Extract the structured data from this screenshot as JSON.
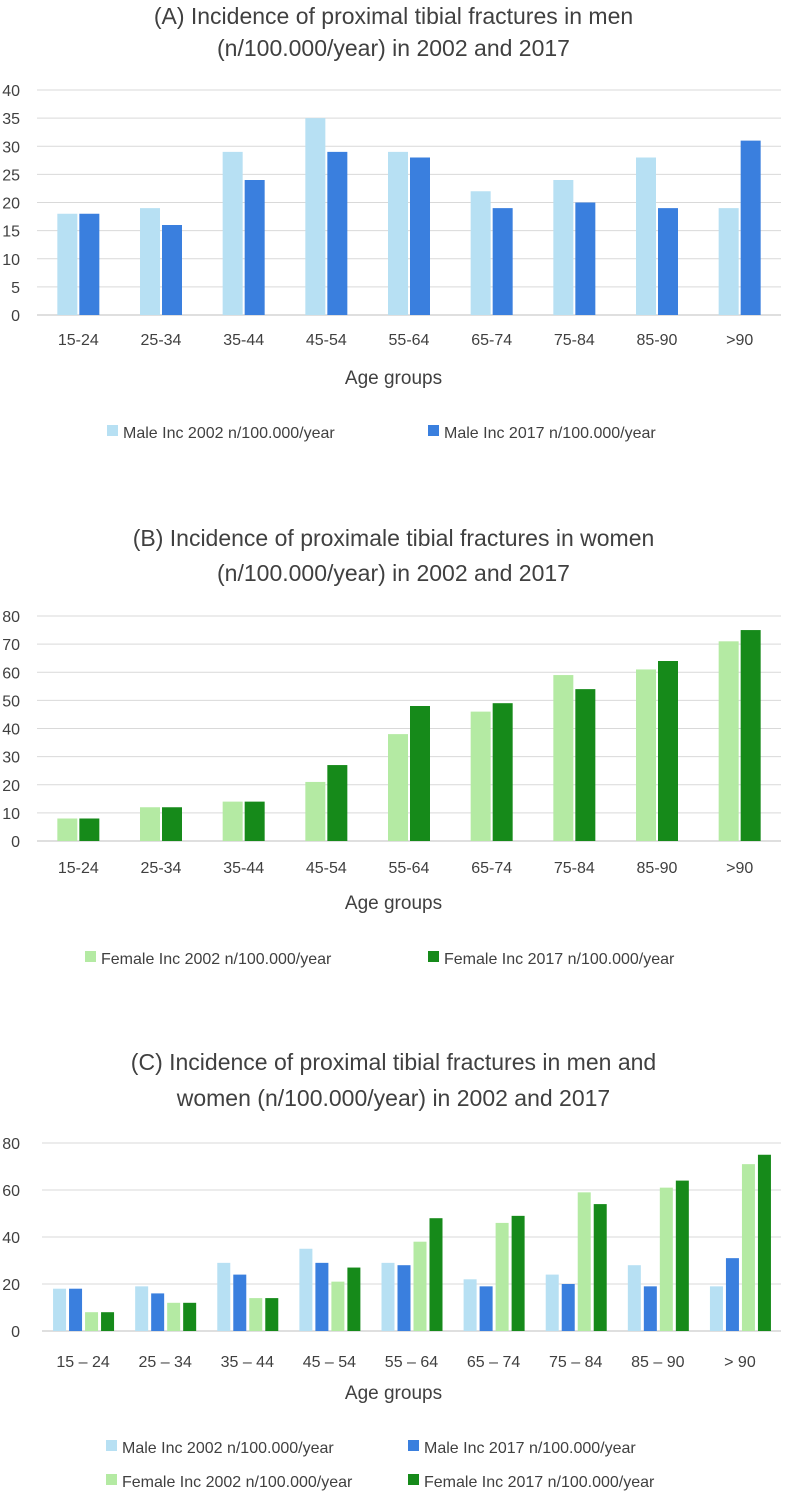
{
  "colors": {
    "male2002": "#b7e0f3",
    "male2017": "#3a7fde",
    "female2002": "#b4eaa3",
    "female2017": "#168a1a"
  },
  "chart_data": [
    {
      "type": "bar",
      "title": [
        "(A) Incidence of proximal tibial fractures in men",
        "(n/100.000/year) in 2002 and 2017"
      ],
      "xlabel": "Age groups",
      "ylabel": "",
      "ylim": [
        0,
        40
      ],
      "yticks": [
        0,
        5,
        10,
        15,
        20,
        25,
        30,
        35,
        40
      ],
      "grid": true,
      "legend_position": "bottom",
      "categories": [
        "15-24",
        "25-34",
        "35-44",
        "45-54",
        "55-64",
        "65-74",
        "75-84",
        "85-90",
        ">90"
      ],
      "series": [
        {
          "name": "Male Inc 2002 n/100.000/year",
          "color": "#b7e0f3",
          "values": [
            18,
            19,
            29,
            35,
            29,
            22,
            24,
            28,
            19
          ]
        },
        {
          "name": "Male Inc 2017 n/100.000/year",
          "color": "#3a7fde",
          "values": [
            18,
            16,
            24,
            29,
            28,
            19,
            20,
            19,
            31
          ]
        }
      ]
    },
    {
      "type": "bar",
      "title": [
        "(B) Incidence of proximale tibial fractures in women",
        "(n/100.000/year) in 2002 and 2017"
      ],
      "xlabel": "Age groups",
      "ylabel": "",
      "ylim": [
        0,
        80
      ],
      "yticks": [
        0,
        10,
        20,
        30,
        40,
        50,
        60,
        70,
        80
      ],
      "grid": true,
      "legend_position": "bottom",
      "categories": [
        "15-24",
        "25-34",
        "35-44",
        "45-54",
        "55-64",
        "65-74",
        "75-84",
        "85-90",
        ">90"
      ],
      "series": [
        {
          "name": "Female Inc 2002 n/100.000/year",
          "color": "#b4eaa3",
          "values": [
            8,
            12,
            14,
            21,
            38,
            46,
            59,
            61,
            71
          ]
        },
        {
          "name": "Female Inc 2017 n/100.000/year",
          "color": "#168a1a",
          "values": [
            8,
            12,
            14,
            27,
            48,
            49,
            54,
            64,
            75
          ]
        }
      ]
    },
    {
      "type": "bar",
      "title": [
        "(C) Incidence of proximal tibial fractures in men and",
        "women (n/100.000/year) in 2002 and 2017"
      ],
      "xlabel": "Age groups",
      "ylabel": "",
      "ylim": [
        0,
        80
      ],
      "yticks": [
        0,
        20,
        40,
        60,
        80
      ],
      "grid": true,
      "legend_position": "bottom",
      "categories": [
        "15 – 24",
        "25 – 34",
        "35 – 44",
        "45 – 54",
        "55 – 64",
        "65 – 74",
        "75 – 84",
        "85 – 90",
        "> 90"
      ],
      "series": [
        {
          "name": "Male Inc 2002 n/100.000/year",
          "color": "#b7e0f3",
          "values": [
            18,
            19,
            29,
            35,
            29,
            22,
            24,
            28,
            19
          ]
        },
        {
          "name": "Male Inc 2017 n/100.000/year",
          "color": "#3a7fde",
          "values": [
            18,
            16,
            24,
            29,
            28,
            19,
            20,
            19,
            31
          ]
        },
        {
          "name": "Female Inc 2002 n/100.000/year",
          "color": "#b4eaa3",
          "values": [
            8,
            12,
            14,
            21,
            38,
            46,
            59,
            61,
            71
          ]
        },
        {
          "name": "Female Inc 2017 n/100.000/year",
          "color": "#168a1a",
          "values": [
            8,
            12,
            14,
            27,
            48,
            49,
            54,
            64,
            75
          ]
        }
      ]
    }
  ]
}
